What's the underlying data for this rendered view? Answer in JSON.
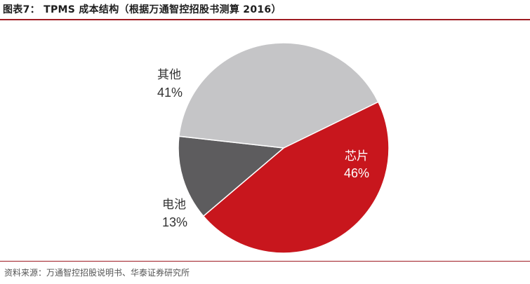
{
  "figure": {
    "title": "图表7：  TPMS 成本结构（根据万通智控招股书测算 2016）",
    "source": "资料来源：万通智控招股说明书、华泰证券研究所"
  },
  "chart_data": {
    "type": "pie",
    "title": "",
    "unit": "%",
    "start_angle_deg": 64,
    "direction": "clockwise",
    "slices": [
      {
        "label": "芯片",
        "value": 46,
        "display": "46%",
        "color": "#c8161d",
        "label_color": "#ffffff"
      },
      {
        "label": "电池",
        "value": 13,
        "display": "13%",
        "color": "#5d5c5e",
        "label_color": "#333333"
      },
      {
        "label": "其他",
        "value": 41,
        "display": "41%",
        "color": "#c5c5c7",
        "label_color": "#333333"
      }
    ]
  }
}
